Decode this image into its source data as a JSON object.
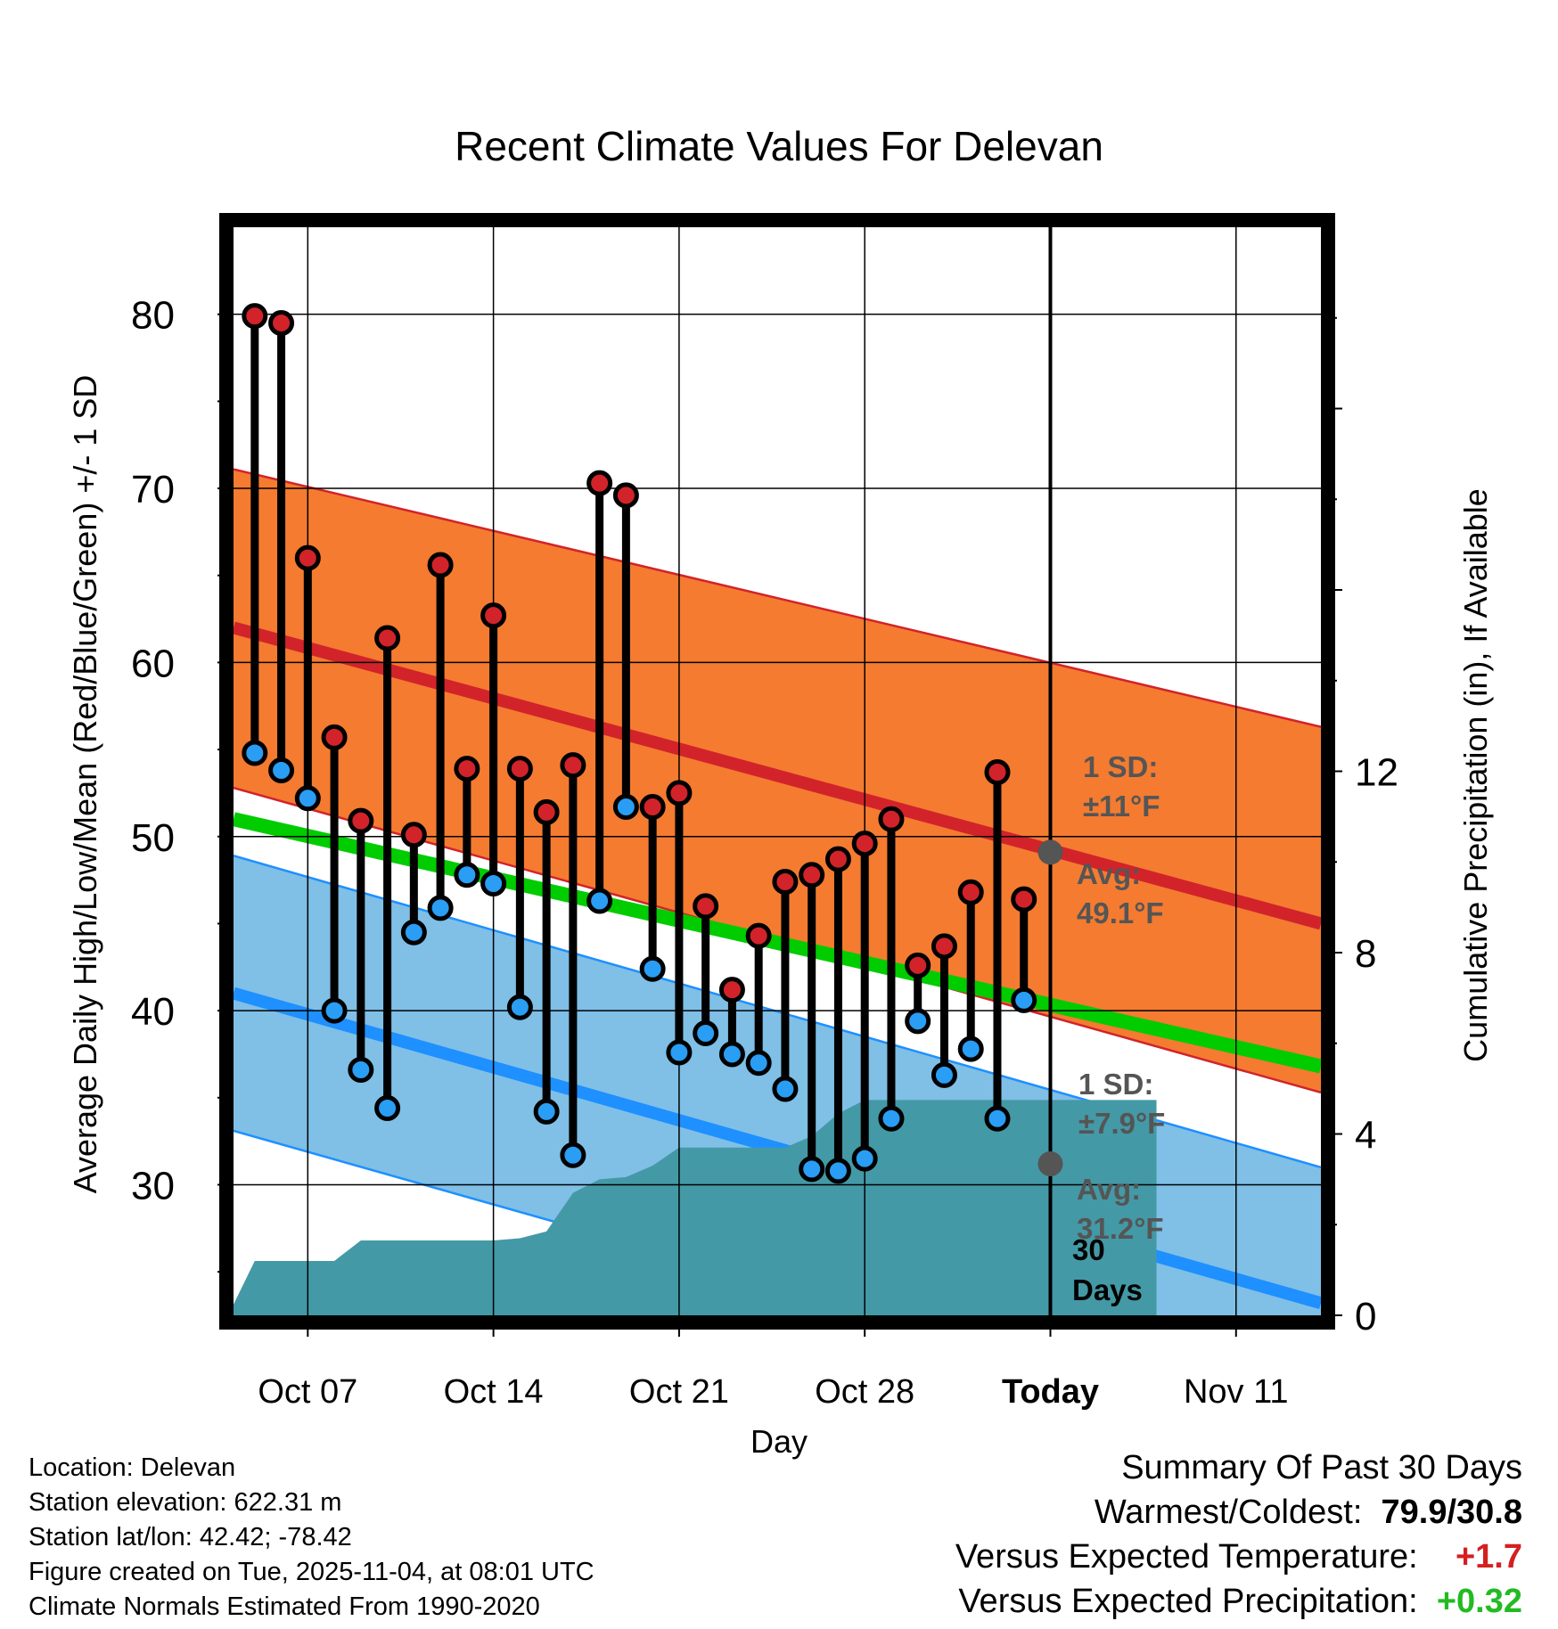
{
  "chart_data": {
    "type": "line",
    "title": "Recent Climate Values For Delevan",
    "xlabel": "Day",
    "ylabel": "Average Daily High/Low/Mean (Red/Blue/Green) +/- 1 SD",
    "y2label": "Cumulative Precipitation (in), If Available",
    "ylim": [
      22.5,
      85
    ],
    "y2lim": [
      0,
      24
    ],
    "xlim": [
      -2.8,
      38.2
    ],
    "x_ticks": [
      {
        "day": 0,
        "label": "Oct 07"
      },
      {
        "day": 7,
        "label": "Oct 14"
      },
      {
        "day": 14,
        "label": "Oct 21"
      },
      {
        "day": 21,
        "label": "Oct 28"
      },
      {
        "day": 28,
        "label": "Today"
      },
      {
        "day": 35,
        "label": "Nov 11"
      }
    ],
    "y_ticks": [
      30,
      40,
      50,
      60,
      70,
      80
    ],
    "y2_ticks": [
      0,
      4,
      8,
      12
    ],
    "today_day": 28,
    "normals": {
      "high_mean": {
        "start": 62.0,
        "end": 45.0
      },
      "high_band": {
        "upper_start": 71.1,
        "upper_end": 56.3,
        "lower_start": 52.8,
        "lower_end": 35.3
      },
      "low_mean": {
        "start": 41.0,
        "end": 23.2
      },
      "low_band": {
        "upper_start": 48.9,
        "upper_end": 31.0,
        "lower_start": 33.1,
        "lower_end": 15.4
      },
      "daily_mean": {
        "start": 51.0,
        "end": 36.8
      }
    },
    "series": [
      {
        "name": "High",
        "color": "#c8282d",
        "values": [
          79.9,
          79.5,
          66.0,
          55.7,
          50.9,
          61.4,
          50.1,
          65.6,
          53.9,
          62.7,
          53.9,
          51.4,
          54.1,
          70.3,
          69.6,
          51.7,
          52.5,
          46.0,
          41.2,
          44.3,
          47.4,
          47.8,
          48.7,
          49.6,
          51.0,
          42.6,
          43.7,
          46.8,
          53.7,
          46.4
        ]
      },
      {
        "name": "Low",
        "color": "#1e90ff",
        "values": [
          54.8,
          53.8,
          52.2,
          40.0,
          36.6,
          34.4,
          44.5,
          45.9,
          47.8,
          47.3,
          40.2,
          34.2,
          31.7,
          46.3,
          51.7,
          42.4,
          37.6,
          38.7,
          37.5,
          37.0,
          35.5,
          30.9,
          30.8,
          31.5,
          33.8,
          39.4,
          36.3,
          37.8,
          33.8,
          40.6
        ]
      },
      {
        "name": "Cumulative Precipitation",
        "color": "#4499a6",
        "values": [
          0.0,
          1.2,
          1.2,
          1.2,
          1.2,
          1.65,
          1.65,
          1.65,
          1.65,
          1.65,
          1.65,
          1.7,
          1.85,
          2.7,
          3.0,
          3.05,
          3.3,
          3.7,
          3.7,
          3.7,
          3.7,
          3.7,
          3.95,
          4.45,
          4.75,
          4.75,
          4.75,
          4.75,
          4.75,
          4.75,
          4.75,
          4.75,
          4.75,
          4.75,
          4.75,
          4.75
        ]
      }
    ],
    "precip_start_day": -3,
    "annotations": {
      "high_sd_label": "1 SD:",
      "high_sd_value": "±11°F",
      "high_avg_label": "Avg:",
      "high_avg_value": "49.1°F",
      "high_avg": 49.1,
      "low_sd_label": "1 SD:",
      "low_sd_value": "±7.9°F",
      "low_avg_label": "Avg:",
      "low_avg_value": "31.2°F",
      "low_avg": 31.2,
      "window_label": "30",
      "window_label2": "Days"
    },
    "colors": {
      "high_band": "#f47b30",
      "high_line": "#d2232a",
      "low_band": "#80bfe6",
      "low_line": "#1e90ff",
      "mean_line": "#00cc00",
      "overlap": "#9c1419",
      "precip": "#4499a6",
      "annotation": "#555555"
    }
  },
  "info": {
    "location": "Location: Delevan",
    "elevation": "Station elevation: 622.31 m",
    "latlon": "Station lat/lon: 42.42; -78.42",
    "created": "Figure created on Tue, 2025-11-04, at 08:01 UTC",
    "normals": "Climate Normals Estimated From 1990-2020"
  },
  "summary": {
    "title": "Summary Of Past 30 Days",
    "warm_cold_label": "Warmest/Coldest:",
    "warm_cold_value": "79.9/30.8",
    "temp_label": "Versus Expected Temperature:",
    "temp_value": "+1.7",
    "precip_label": "Versus Expected Precipitation:",
    "precip_value": "+0.32",
    "temp_color": "#d42020",
    "precip_color": "#22bb22"
  }
}
